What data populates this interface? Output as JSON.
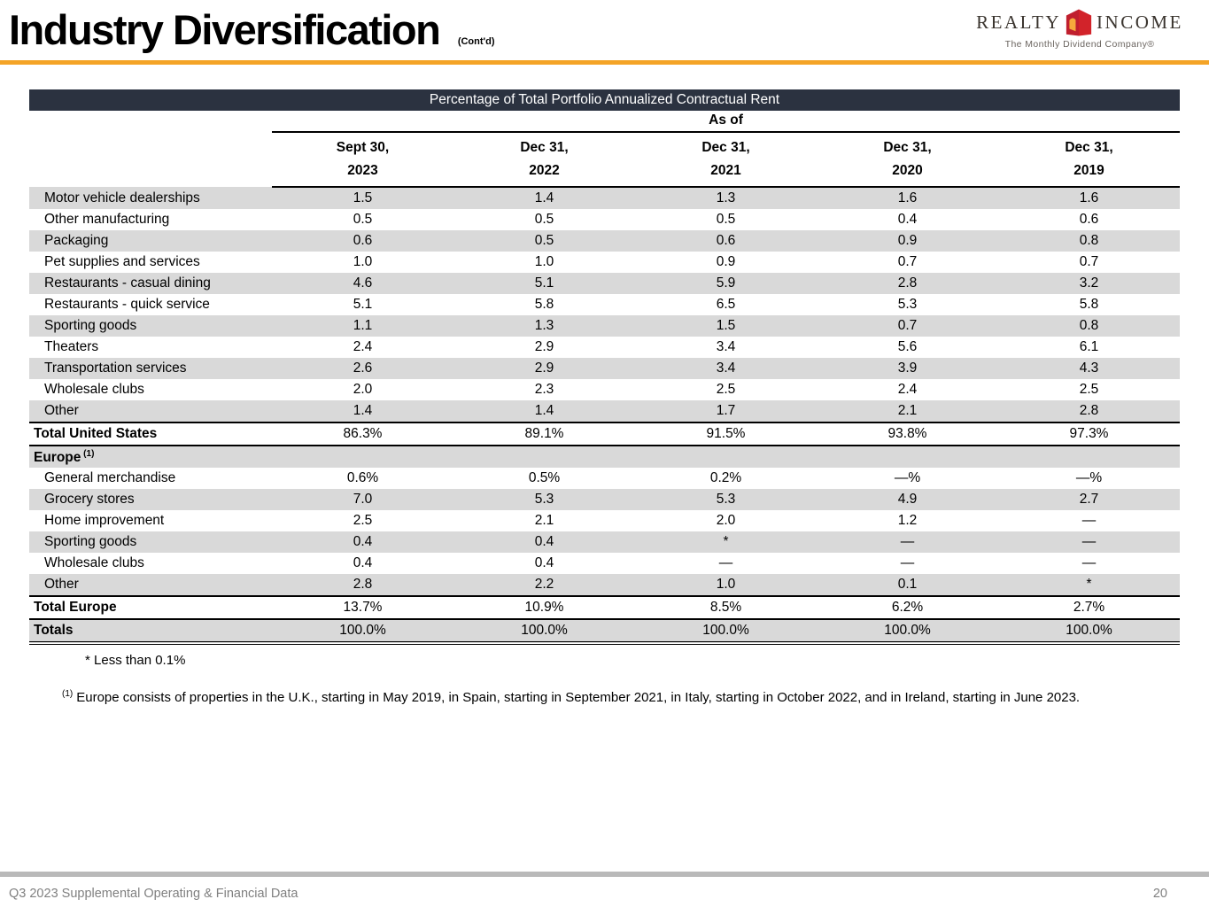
{
  "header": {
    "title": "Industry Diversification",
    "title_suffix": "(Cont'd)",
    "logo": {
      "word_left": "REALTY",
      "word_right": "INCOME",
      "tagline": "The Monthly Dividend Company®"
    }
  },
  "table": {
    "banner": "Percentage of Total Portfolio Annualized Contractual Rent",
    "as_of_label": "As of",
    "columns": [
      [
        "Sept 30,",
        "2023"
      ],
      [
        "Dec 31,",
        "2022"
      ],
      [
        "Dec 31,",
        "2021"
      ],
      [
        "Dec 31,",
        "2020"
      ],
      [
        "Dec 31,",
        "2019"
      ]
    ],
    "rows": [
      {
        "label": "Motor vehicle dealerships",
        "type": "item",
        "values": [
          "1.5",
          "1.4",
          "1.3",
          "1.6",
          "1.6"
        ]
      },
      {
        "label": "Other manufacturing",
        "type": "item",
        "values": [
          "0.5",
          "0.5",
          "0.5",
          "0.4",
          "0.6"
        ]
      },
      {
        "label": "Packaging",
        "type": "item",
        "values": [
          "0.6",
          "0.5",
          "0.6",
          "0.9",
          "0.8"
        ]
      },
      {
        "label": "Pet supplies and services",
        "type": "item",
        "values": [
          "1.0",
          "1.0",
          "0.9",
          "0.7",
          "0.7"
        ]
      },
      {
        "label": "Restaurants - casual dining",
        "type": "item",
        "values": [
          "4.6",
          "5.1",
          "5.9",
          "2.8",
          "3.2"
        ]
      },
      {
        "label": "Restaurants - quick service",
        "type": "item",
        "values": [
          "5.1",
          "5.8",
          "6.5",
          "5.3",
          "5.8"
        ]
      },
      {
        "label": "Sporting goods",
        "type": "item",
        "values": [
          "1.1",
          "1.3",
          "1.5",
          "0.7",
          "0.8"
        ]
      },
      {
        "label": "Theaters",
        "type": "item",
        "values": [
          "2.4",
          "2.9",
          "3.4",
          "5.6",
          "6.1"
        ]
      },
      {
        "label": "Transportation services",
        "type": "item",
        "values": [
          "2.6",
          "2.9",
          "3.4",
          "3.9",
          "4.3"
        ]
      },
      {
        "label": "Wholesale clubs",
        "type": "item",
        "values": [
          "2.0",
          "2.3",
          "2.5",
          "2.4",
          "2.5"
        ]
      },
      {
        "label": "Other",
        "type": "item",
        "values": [
          "1.4",
          "1.4",
          "1.7",
          "2.1",
          "2.8"
        ]
      },
      {
        "label": "Total United States",
        "type": "total",
        "values": [
          "86.3%",
          "89.1%",
          "91.5%",
          "93.8%",
          "97.3%"
        ]
      },
      {
        "label": "Europe",
        "sup": "(1)",
        "type": "section",
        "values": [
          "",
          "",
          "",
          "",
          ""
        ]
      },
      {
        "label": "General merchandise",
        "type": "item",
        "values": [
          "0.6%",
          "0.5%",
          "0.2%",
          "—%",
          "—%"
        ]
      },
      {
        "label": "Grocery stores",
        "type": "item",
        "values": [
          "7.0",
          "5.3",
          "5.3",
          "4.9",
          "2.7"
        ]
      },
      {
        "label": "Home improvement",
        "type": "item",
        "values": [
          "2.5",
          "2.1",
          "2.0",
          "1.2",
          "—"
        ]
      },
      {
        "label": "Sporting goods",
        "type": "item",
        "values": [
          "0.4",
          "0.4",
          "*",
          "—",
          "—"
        ]
      },
      {
        "label": "Wholesale clubs",
        "type": "item",
        "values": [
          "0.4",
          "0.4",
          "—",
          "—",
          "—"
        ]
      },
      {
        "label": "Other",
        "type": "item",
        "values": [
          "2.8",
          "2.2",
          "1.0",
          "0.1",
          "*"
        ]
      },
      {
        "label": "Total Europe",
        "type": "total",
        "values": [
          "13.7%",
          "10.9%",
          "8.5%",
          "6.2%",
          "2.7%"
        ]
      },
      {
        "label": "Totals",
        "type": "grand",
        "values": [
          "100.0%",
          "100.0%",
          "100.0%",
          "100.0%",
          "100.0%"
        ]
      }
    ]
  },
  "footnotes": {
    "asterisk": "* Less than 0.1%",
    "one_sup": "(1)",
    "one_text": "Europe consists of properties in the U.K., starting in May 2019, in Spain, starting in September 2021, in Italy, starting in October 2022, and in Ireland, starting in June 2023."
  },
  "footer": {
    "left": "Q3 2023 Supplemental Operating & Financial Data",
    "page": "20"
  },
  "colors": {
    "accent_orange": "#F4A427",
    "banner_bg": "#2B3240",
    "row_shade": "#D9D9D9",
    "logo_red": "#D2232A",
    "logo_red_dark": "#C01F2E",
    "logo_gold": "#F6AA3C",
    "footer_gray": "#808080"
  }
}
